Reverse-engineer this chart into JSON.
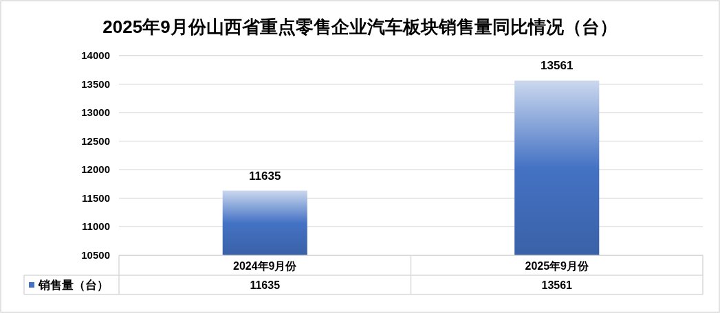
{
  "chart_data": {
    "type": "bar",
    "title": "2025年9月份山西省重点零售企业汽车板块销售量同比情况（台）",
    "categories": [
      "2024年9月份",
      "2025年9月份"
    ],
    "series": [
      {
        "name": "销售量（台）",
        "color": "#4472c4",
        "values": [
          11635,
          13561
        ]
      }
    ],
    "ylim": [
      10500,
      14000
    ],
    "yticks": [
      10500,
      11000,
      11500,
      12000,
      12500,
      13000,
      13500,
      14000
    ],
    "grid": "y",
    "legend": "bottom left",
    "data_labels": true,
    "annotations": [
      {
        "text": "11635",
        "x": "2024年9月份",
        "y": 11635
      },
      {
        "text": "13561",
        "x": "2025年9月份",
        "y": 13561
      }
    ]
  }
}
